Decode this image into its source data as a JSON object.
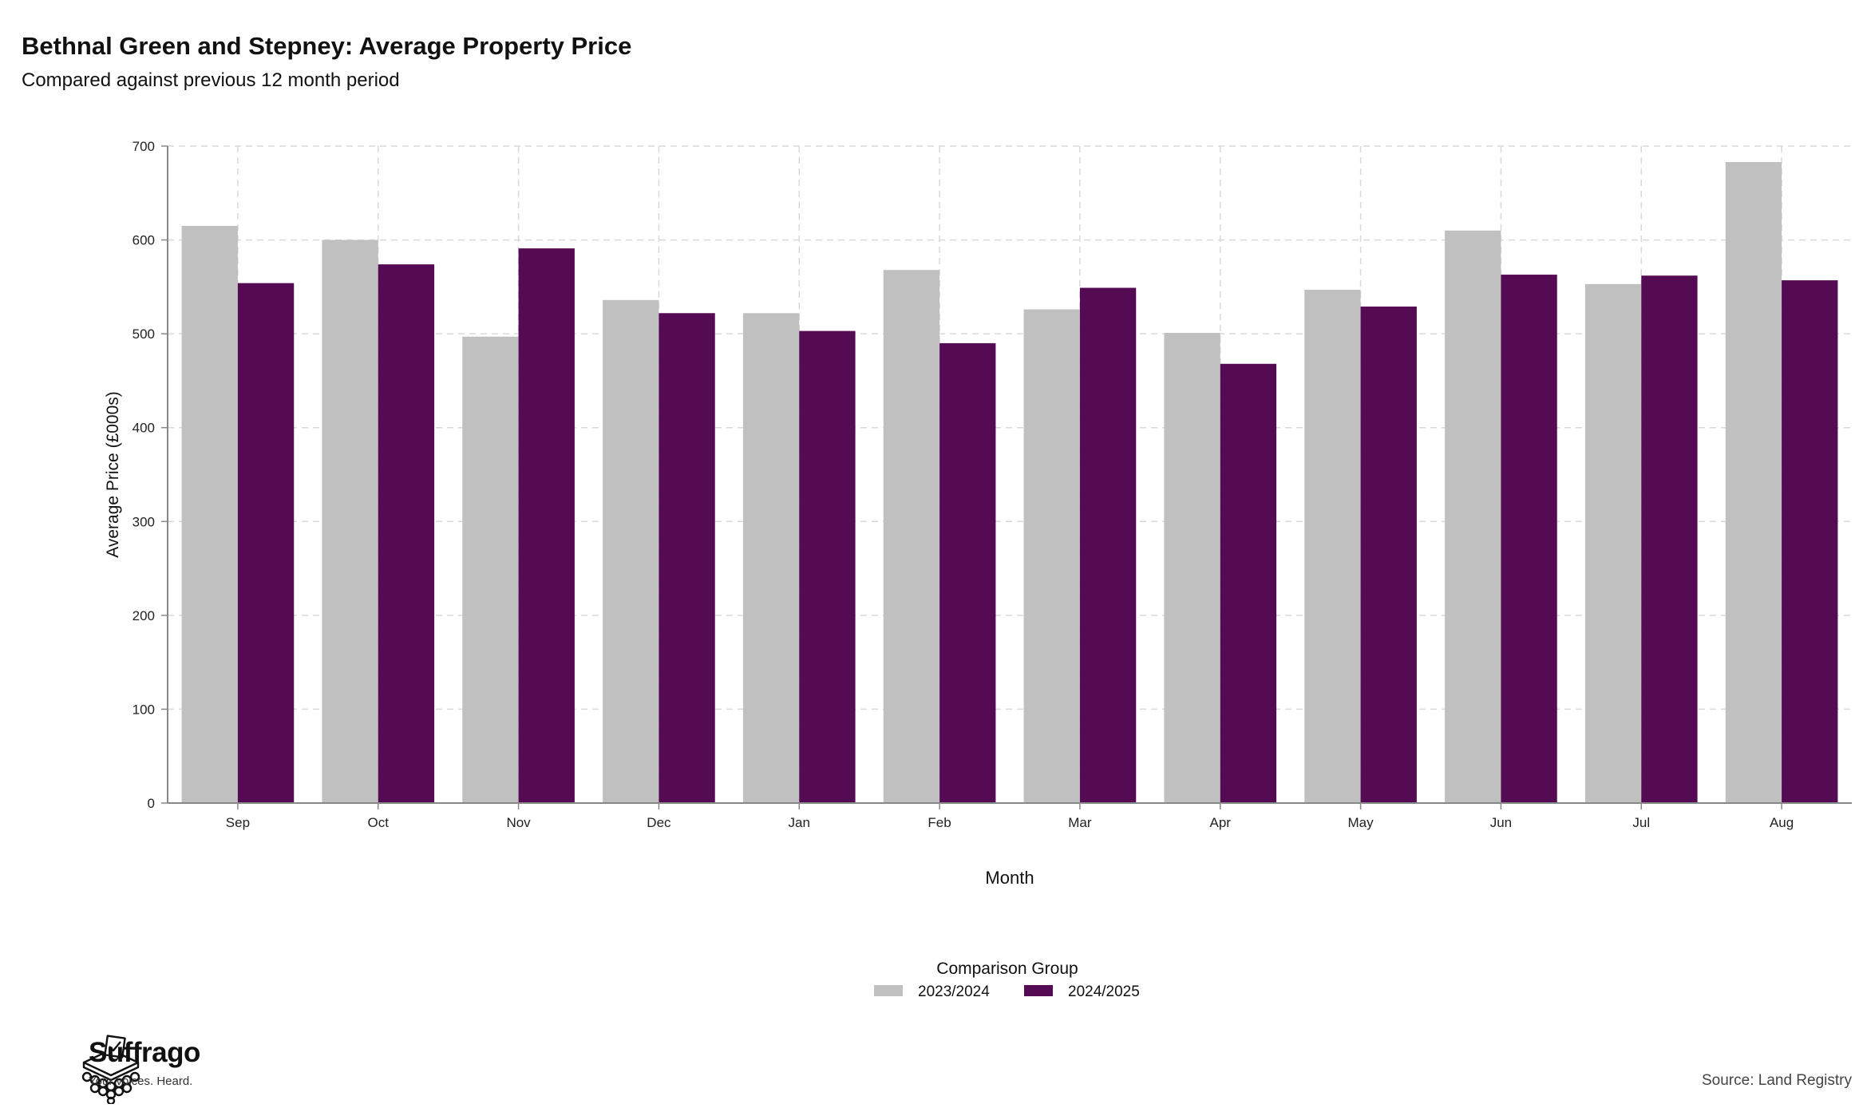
{
  "header": {
    "title": "Bethnal Green and Stepney: Average Property Price",
    "subtitle": "Compared against previous 12 month period"
  },
  "footer": {
    "logo_name": "Suffrago",
    "logo_tagline": "Your voices. Heard.",
    "source": "Source: Land Registry"
  },
  "colors": {
    "series_2023_2024": "#c0c0c0",
    "series_2024_2025": "#550b53",
    "grid": "#d9d9d9",
    "axis": "#888888"
  },
  "chart_data": {
    "type": "bar",
    "title": "Bethnal Green and Stepney: Average Property Price",
    "subtitle": "Compared against previous 12 month period",
    "xlabel": "Month",
    "ylabel": "Average Price (£000s)",
    "ylim": [
      0,
      700
    ],
    "yticks": [
      0,
      100,
      200,
      300,
      400,
      500,
      600,
      700
    ],
    "grid": true,
    "legend_title": "Comparison Group",
    "legend_position": "bottom",
    "categories": [
      "Sep",
      "Oct",
      "Nov",
      "Dec",
      "Jan",
      "Feb",
      "Mar",
      "Apr",
      "May",
      "Jun",
      "Jul",
      "Aug"
    ],
    "series": [
      {
        "name": "2023/2024",
        "color": "#c0c0c0",
        "values": [
          615,
          600,
          497,
          536,
          522,
          568,
          526,
          501,
          547,
          610,
          553,
          683
        ]
      },
      {
        "name": "2024/2025",
        "color": "#550b53",
        "values": [
          554,
          574,
          591,
          522,
          503,
          490,
          549,
          468,
          529,
          563,
          562,
          557
        ]
      }
    ]
  }
}
